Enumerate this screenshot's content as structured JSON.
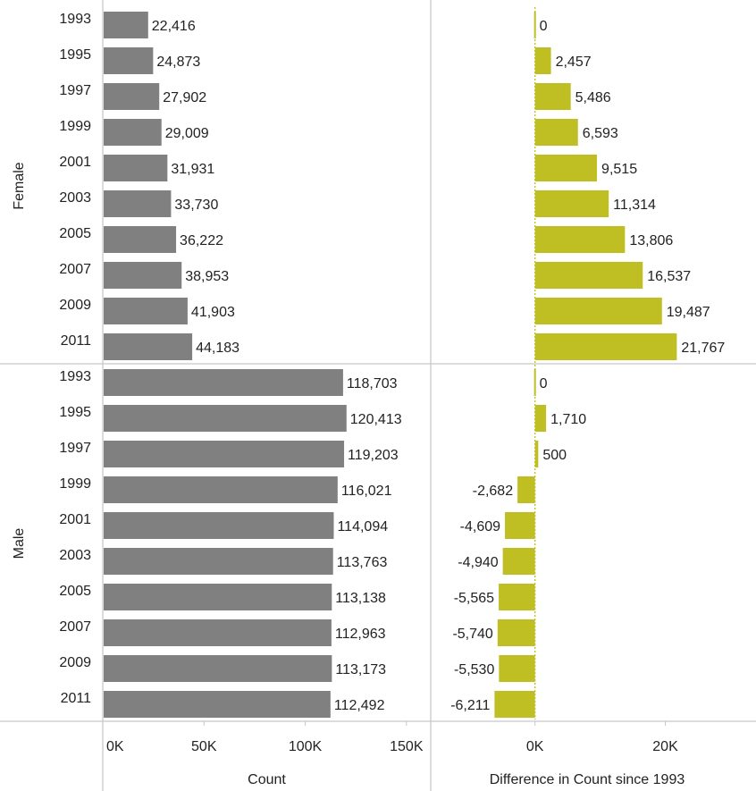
{
  "chart_data": {
    "type": "bar",
    "orientation": "horizontal",
    "groups": [
      {
        "name": "Female",
        "rows": [
          {
            "year": "1993",
            "count": 22416,
            "count_label": "22,416",
            "diff": 0,
            "diff_label": "0"
          },
          {
            "year": "1995",
            "count": 24873,
            "count_label": "24,873",
            "diff": 2457,
            "diff_label": "2,457"
          },
          {
            "year": "1997",
            "count": 27902,
            "count_label": "27,902",
            "diff": 5486,
            "diff_label": "5,486"
          },
          {
            "year": "1999",
            "count": 29009,
            "count_label": "29,009",
            "diff": 6593,
            "diff_label": "6,593"
          },
          {
            "year": "2001",
            "count": 31931,
            "count_label": "31,931",
            "diff": 9515,
            "diff_label": "9,515"
          },
          {
            "year": "2003",
            "count": 33730,
            "count_label": "33,730",
            "diff": 11314,
            "diff_label": "11,314"
          },
          {
            "year": "2005",
            "count": 36222,
            "count_label": "36,222",
            "diff": 13806,
            "diff_label": "13,806"
          },
          {
            "year": "2007",
            "count": 38953,
            "count_label": "38,953",
            "diff": 16537,
            "diff_label": "16,537"
          },
          {
            "year": "2009",
            "count": 41903,
            "count_label": "41,903",
            "diff": 19487,
            "diff_label": "19,487"
          },
          {
            "year": "2011",
            "count": 44183,
            "count_label": "44,183",
            "diff": 21767,
            "diff_label": "21,767"
          }
        ]
      },
      {
        "name": "Male",
        "rows": [
          {
            "year": "1993",
            "count": 118703,
            "count_label": "118,703",
            "diff": 0,
            "diff_label": "0"
          },
          {
            "year": "1995",
            "count": 120413,
            "count_label": "120,413",
            "diff": 1710,
            "diff_label": "1,710"
          },
          {
            "year": "1997",
            "count": 119203,
            "count_label": "119,203",
            "diff": 500,
            "diff_label": "500"
          },
          {
            "year": "1999",
            "count": 116021,
            "count_label": "116,021",
            "diff": -2682,
            "diff_label": "-2,682"
          },
          {
            "year": "2001",
            "count": 114094,
            "count_label": "114,094",
            "diff": -4609,
            "diff_label": "-4,609"
          },
          {
            "year": "2003",
            "count": 113763,
            "count_label": "113,763",
            "diff": -4940,
            "diff_label": "-4,940"
          },
          {
            "year": "2005",
            "count": 113138,
            "count_label": "113,138",
            "diff": -5565,
            "diff_label": "-5,565"
          },
          {
            "year": "2007",
            "count": 112963,
            "count_label": "112,963",
            "diff": -5740,
            "diff_label": "-5,740"
          },
          {
            "year": "2009",
            "count": 113173,
            "count_label": "113,173",
            "diff": -5530,
            "diff_label": "-5,530"
          },
          {
            "year": "2011",
            "count": 112492,
            "count_label": "112,492",
            "diff": -6211,
            "diff_label": "-6,211"
          }
        ]
      }
    ],
    "panels": [
      {
        "key": "count",
        "xlabel": "Count",
        "xlim": [
          0,
          162000
        ],
        "ticks": [
          0,
          50000,
          100000,
          150000
        ],
        "tick_labels": [
          "0K",
          "50K",
          "100K",
          "150K"
        ],
        "color": "#808080"
      },
      {
        "key": "diff",
        "xlabel": "Difference in Count since 1993",
        "xlim": [
          -16000,
          32000
        ],
        "ticks": [
          0,
          20000
        ],
        "tick_labels": [
          "0K",
          "20K"
        ],
        "color": "#bfbf24"
      }
    ],
    "grid": false,
    "legend": "none"
  }
}
